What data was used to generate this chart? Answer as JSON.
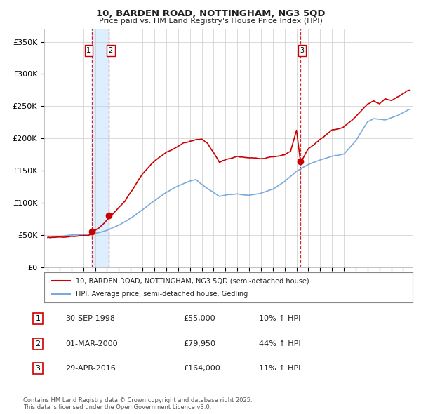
{
  "title1": "10, BARDEN ROAD, NOTTINGHAM, NG3 5QD",
  "title2": "Price paid vs. HM Land Registry's House Price Index (HPI)",
  "legend1": "10, BARDEN ROAD, NOTTINGHAM, NG3 5QD (semi-detached house)",
  "legend2": "HPI: Average price, semi-detached house, Gedling",
  "transactions": [
    {
      "label": "1",
      "date_x": 1998.75,
      "price": 55000,
      "pct": "10%",
      "date_str": "30-SEP-1998"
    },
    {
      "label": "2",
      "date_x": 2000.17,
      "price": 79950,
      "pct": "44%",
      "date_str": "01-MAR-2000"
    },
    {
      "label": "3",
      "date_x": 2016.33,
      "price": 164000,
      "pct": "11%",
      "date_str": "29-APR-2016"
    }
  ],
  "footnote": "Contains HM Land Registry data © Crown copyright and database right 2025.\nThis data is licensed under the Open Government Licence v3.0.",
  "line_color_red": "#cc0000",
  "line_color_blue": "#7aaadd",
  "dot_color": "#cc0000",
  "vline_color": "#cc0000",
  "band_color": "#ddeeff",
  "grid_color": "#cccccc",
  "bg_color": "#ffffff",
  "ylim": [
    0,
    370000
  ],
  "xlim_start": 1994.7,
  "xlim_end": 2025.8,
  "hpi_anchors_x": [
    1995.0,
    1996.0,
    1997.0,
    1998.0,
    1999.0,
    2000.0,
    2001.0,
    2002.0,
    2003.0,
    2004.0,
    2005.0,
    2006.0,
    2007.0,
    2007.5,
    2008.5,
    2009.5,
    2010.0,
    2011.0,
    2012.0,
    2013.0,
    2014.0,
    2015.0,
    2016.0,
    2017.0,
    2018.0,
    2019.0,
    2020.0,
    2021.0,
    2022.0,
    2022.5,
    2023.5,
    2024.5,
    2025.5
  ],
  "hpi_anchors_y": [
    46000,
    47500,
    49000,
    50500,
    52000,
    56000,
    64000,
    75000,
    88000,
    102000,
    115000,
    125000,
    132000,
    134000,
    120000,
    108000,
    110000,
    112000,
    110000,
    113000,
    120000,
    132000,
    148000,
    158000,
    165000,
    172000,
    175000,
    195000,
    225000,
    230000,
    228000,
    235000,
    245000
  ],
  "pp_anchors_x": [
    1995.0,
    1997.0,
    1998.5,
    1998.75,
    1999.5,
    2000.17,
    2001.5,
    2003.0,
    2004.5,
    2005.5,
    2006.5,
    2007.5,
    2008.0,
    2008.5,
    2009.0,
    2009.5,
    2010.0,
    2011.0,
    2012.0,
    2013.0,
    2014.0,
    2015.0,
    2015.5,
    2016.0,
    2016.33,
    2016.5,
    2017.0,
    2018.0,
    2019.0,
    2020.0,
    2021.0,
    2022.0,
    2022.5,
    2023.0,
    2023.5,
    2024.0,
    2024.5,
    2025.0,
    2025.5
  ],
  "pp_anchors_y": [
    46000,
    49000,
    52000,
    55000,
    67000,
    79950,
    105000,
    148000,
    175000,
    185000,
    195000,
    200000,
    202000,
    195000,
    180000,
    165000,
    170000,
    175000,
    172000,
    170000,
    172000,
    175000,
    180000,
    213000,
    164000,
    168000,
    185000,
    200000,
    215000,
    220000,
    235000,
    255000,
    260000,
    255000,
    262000,
    260000,
    265000,
    270000,
    275000
  ]
}
